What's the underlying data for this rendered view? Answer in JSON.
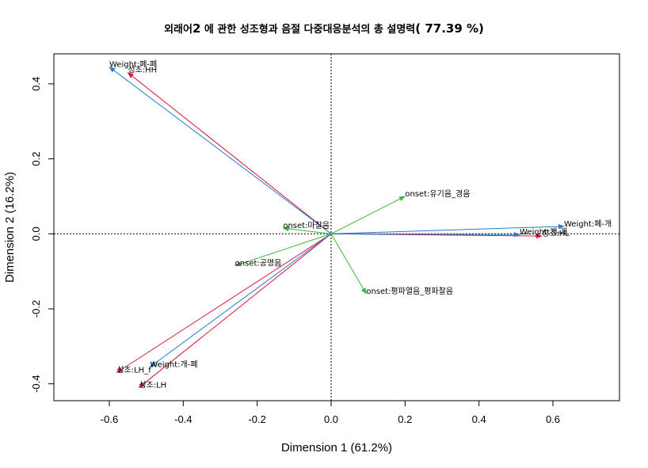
{
  "title": {
    "prefix": "외래어",
    "number": "2",
    "middle": " 에 관한 성조형과 음절 다중대응분석의 총 설명력",
    "pct": "( 77.39 %)"
  },
  "chart_data": {
    "type": "biplot",
    "xlabel": "Dimension 1 (61.2%)",
    "ylabel": "Dimension 2 (16.2%)",
    "xlim": [
      -0.75,
      0.78
    ],
    "ylim": [
      -0.445,
      0.48
    ],
    "xticks": [
      -0.6,
      -0.4,
      -0.2,
      0.0,
      0.2,
      0.4,
      0.6
    ],
    "xtick_labels": [
      "-0.6",
      "-0.4",
      "-0.2",
      "0.0",
      "0.2",
      "0.4",
      "0.6"
    ],
    "yticks": [
      -0.4,
      -0.2,
      0.0,
      0.2,
      0.4
    ],
    "ytick_labels": [
      "-0.4",
      "-0.2",
      "0.0",
      "0.2",
      "0.4"
    ],
    "reference_lines": {
      "x": 0,
      "y": 0,
      "style": "dotted"
    },
    "colors": {
      "tone": "#dc143c",
      "weight": "#1e7fd0",
      "onset": "#3cb83c"
    },
    "series": [
      {
        "name": "성조",
        "color": "#dc143c",
        "points": [
          {
            "label": "성조:HH",
            "x": -0.55,
            "y": 0.43
          },
          {
            "label": "성조:HL",
            "x": 0.57,
            "y": -0.006
          },
          {
            "label": "성조:LH_f",
            "x": -0.58,
            "y": -0.37
          },
          {
            "label": "성조:LH",
            "x": -0.52,
            "y": -0.41
          }
        ]
      },
      {
        "name": "Weight",
        "color": "#1e7fd0",
        "points": [
          {
            "label": "Weight:폐-폐",
            "x": -0.6,
            "y": 0.445
          },
          {
            "label": "Weight:폐-개",
            "x": 0.63,
            "y": 0.02
          },
          {
            "label": "Weight:개-폐",
            "x": -0.49,
            "y": -0.355
          },
          {
            "label": "Weight:개-개",
            "x": 0.51,
            "y": -0.002
          }
        ]
      },
      {
        "name": "onset",
        "color": "#3cb83c",
        "points": [
          {
            "label": "onset:유기음_경음",
            "x": 0.2,
            "y": 0.1
          },
          {
            "label": "onset:마찰음",
            "x": -0.13,
            "y": 0.015
          },
          {
            "label": "onset:공명음",
            "x": -0.26,
            "y": -0.085
          },
          {
            "label": "onset:평파열음_평파찰음",
            "x": 0.095,
            "y": -0.16
          }
        ]
      }
    ]
  }
}
